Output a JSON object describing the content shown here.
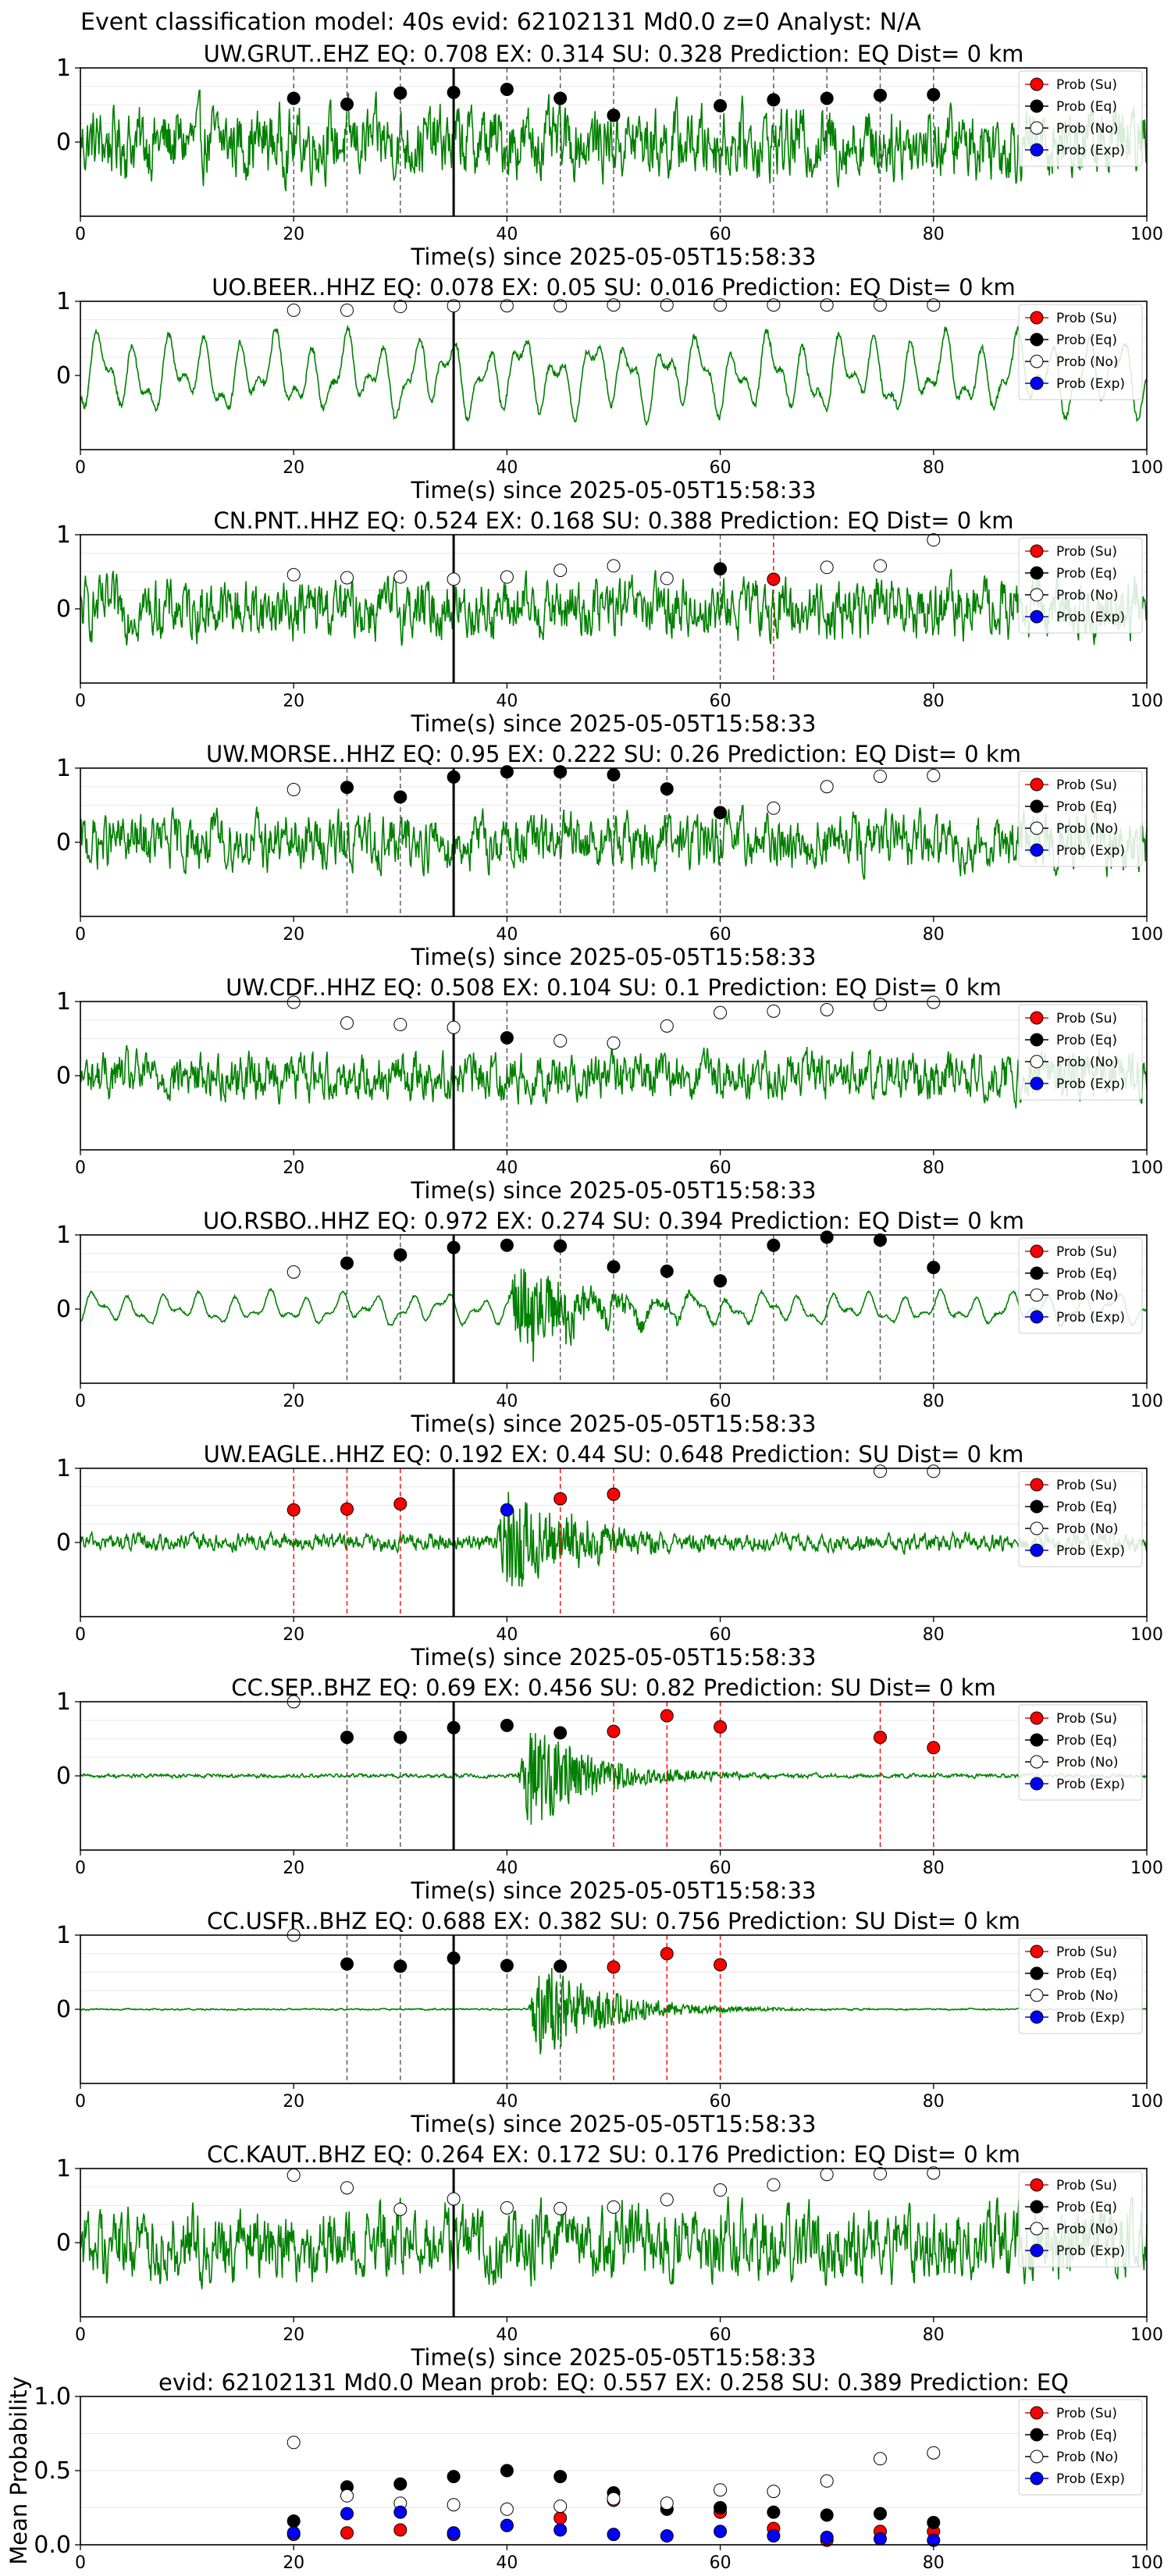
{
  "figure": {
    "suptitle": "Event classification model: 40s evid: 62102131 Md0.0 z=0 Analyst: N/A",
    "xlabel": "Time(s) since 2025-05-05T15:58:33",
    "legend": [
      "Prob (Su)",
      "Prob (Eq)",
      "Prob (No)",
      "Prob (Exp)"
    ],
    "colors": {
      "su": "#ff0000",
      "eq": "#000000",
      "no": "#ffffff",
      "exp": "#0000ff",
      "trace": "#008000",
      "su_line": "#ff0000",
      "eq_line": "#555555"
    }
  },
  "chart_data": [
    {
      "type": "line",
      "station": "UW.GRUT..EHZ",
      "title": "UW.GRUT..EHZ   EQ: 0.708  EX: 0.314  SU: 0.328   Prediction: EQ    Dist= 0 km",
      "xlim": [
        0,
        100
      ],
      "ylim": [
        -1,
        1
      ],
      "xticks": [
        0,
        20,
        40,
        60,
        80,
        100
      ],
      "yticks": [
        0,
        1
      ],
      "noise": 0.9,
      "signal": 0,
      "smooth": false,
      "event_line": 35,
      "eq_lines": [
        20,
        25,
        30,
        40,
        45,
        50,
        60,
        65,
        70,
        75,
        80
      ],
      "su_lines": [],
      "points": [
        {
          "x": 20,
          "y": 0.59,
          "cls": "eq"
        },
        {
          "x": 25,
          "y": 0.51,
          "cls": "eq"
        },
        {
          "x": 30,
          "y": 0.66,
          "cls": "eq"
        },
        {
          "x": 35,
          "y": 0.67,
          "cls": "eq"
        },
        {
          "x": 40,
          "y": 0.71,
          "cls": "eq"
        },
        {
          "x": 45,
          "y": 0.59,
          "cls": "eq"
        },
        {
          "x": 50,
          "y": 0.36,
          "cls": "eq"
        },
        {
          "x": 60,
          "y": 0.49,
          "cls": "eq"
        },
        {
          "x": 65,
          "y": 0.57,
          "cls": "eq"
        },
        {
          "x": 70,
          "y": 0.59,
          "cls": "eq"
        },
        {
          "x": 75,
          "y": 0.63,
          "cls": "eq"
        },
        {
          "x": 80,
          "y": 0.64,
          "cls": "eq"
        }
      ]
    },
    {
      "type": "line",
      "station": "UO.BEER..HHZ",
      "title": "UO.BEER..HHZ   EQ: 0.078  EX: 0.05  SU: 0.016   Prediction: EQ    Dist= 0 km",
      "xlim": [
        0,
        100
      ],
      "ylim": [
        -1,
        1
      ],
      "xticks": [
        0,
        20,
        40,
        60,
        80,
        100
      ],
      "yticks": [
        0,
        1
      ],
      "noise": 0.55,
      "signal": 0,
      "smooth": true,
      "event_line": 35,
      "eq_lines": [],
      "su_lines": [],
      "points": [
        {
          "x": 20,
          "y": 0.88,
          "cls": "no"
        },
        {
          "x": 25,
          "y": 0.88,
          "cls": "no"
        },
        {
          "x": 30,
          "y": 0.93,
          "cls": "no"
        },
        {
          "x": 35,
          "y": 0.94,
          "cls": "no"
        },
        {
          "x": 40,
          "y": 0.94,
          "cls": "no"
        },
        {
          "x": 45,
          "y": 0.94,
          "cls": "no"
        },
        {
          "x": 50,
          "y": 0.95,
          "cls": "no"
        },
        {
          "x": 55,
          "y": 0.95,
          "cls": "no"
        },
        {
          "x": 60,
          "y": 0.95,
          "cls": "no"
        },
        {
          "x": 65,
          "y": 0.95,
          "cls": "no"
        },
        {
          "x": 70,
          "y": 0.95,
          "cls": "no"
        },
        {
          "x": 75,
          "y": 0.95,
          "cls": "no"
        },
        {
          "x": 80,
          "y": 0.95,
          "cls": "no"
        }
      ]
    },
    {
      "type": "line",
      "station": "CN.PNT..HHZ",
      "title": "CN.PNT..HHZ   EQ: 0.524  EX: 0.168  SU: 0.388   Prediction: EQ    Dist= 0 km",
      "xlim": [
        0,
        100
      ],
      "ylim": [
        -1,
        1
      ],
      "xticks": [
        0,
        20,
        40,
        60,
        80,
        100
      ],
      "yticks": [
        0,
        1
      ],
      "noise": 0.75,
      "signal": 0,
      "smooth": false,
      "event_line": 35,
      "eq_lines": [
        60
      ],
      "su_lines": [
        65
      ],
      "points": [
        {
          "x": 20,
          "y": 0.46,
          "cls": "no"
        },
        {
          "x": 25,
          "y": 0.42,
          "cls": "no"
        },
        {
          "x": 30,
          "y": 0.43,
          "cls": "no"
        },
        {
          "x": 35,
          "y": 0.4,
          "cls": "no"
        },
        {
          "x": 40,
          "y": 0.43,
          "cls": "no"
        },
        {
          "x": 45,
          "y": 0.52,
          "cls": "no"
        },
        {
          "x": 50,
          "y": 0.58,
          "cls": "no"
        },
        {
          "x": 55,
          "y": 0.41,
          "cls": "no"
        },
        {
          "x": 60,
          "y": 0.54,
          "cls": "eq"
        },
        {
          "x": 65,
          "y": 0.4,
          "cls": "su"
        },
        {
          "x": 70,
          "y": 0.56,
          "cls": "no"
        },
        {
          "x": 75,
          "y": 0.58,
          "cls": "no"
        },
        {
          "x": 80,
          "y": 0.93,
          "cls": "no"
        }
      ]
    },
    {
      "type": "line",
      "station": "UW.MORSE..HHZ",
      "title": "UW.MORSE..HHZ   EQ: 0.95  EX: 0.222  SU: 0.26   Prediction: EQ    Dist= 0 km",
      "xlim": [
        0,
        100
      ],
      "ylim": [
        -1,
        1
      ],
      "xticks": [
        0,
        20,
        40,
        60,
        80,
        100
      ],
      "yticks": [
        0,
        1
      ],
      "noise": 0.7,
      "signal": 0,
      "smooth": false,
      "event_line": 35,
      "eq_lines": [
        25,
        30,
        40,
        45,
        50,
        55,
        60
      ],
      "su_lines": [],
      "points": [
        {
          "x": 20,
          "y": 0.71,
          "cls": "no"
        },
        {
          "x": 25,
          "y": 0.74,
          "cls": "eq"
        },
        {
          "x": 30,
          "y": 0.61,
          "cls": "eq"
        },
        {
          "x": 35,
          "y": 0.88,
          "cls": "eq"
        },
        {
          "x": 40,
          "y": 0.95,
          "cls": "eq"
        },
        {
          "x": 45,
          "y": 0.95,
          "cls": "eq"
        },
        {
          "x": 50,
          "y": 0.91,
          "cls": "eq"
        },
        {
          "x": 55,
          "y": 0.72,
          "cls": "eq"
        },
        {
          "x": 60,
          "y": 0.4,
          "cls": "eq"
        },
        {
          "x": 65,
          "y": 0.46,
          "cls": "no"
        },
        {
          "x": 70,
          "y": 0.75,
          "cls": "no"
        },
        {
          "x": 75,
          "y": 0.89,
          "cls": "no"
        },
        {
          "x": 80,
          "y": 0.9,
          "cls": "no"
        }
      ]
    },
    {
      "type": "line",
      "station": "UW.CDF..HHZ",
      "title": "UW.CDF..HHZ   EQ: 0.508  EX: 0.104  SU: 0.1   Prediction: EQ    Dist= 0 km",
      "xlim": [
        0,
        100
      ],
      "ylim": [
        -1,
        1
      ],
      "xticks": [
        0,
        20,
        40,
        60,
        80,
        100
      ],
      "yticks": [
        0,
        1
      ],
      "noise": 0.6,
      "signal": 0,
      "smooth": false,
      "event_line": 35,
      "eq_lines": [
        40
      ],
      "su_lines": [],
      "points": [
        {
          "x": 20,
          "y": 0.99,
          "cls": "no"
        },
        {
          "x": 25,
          "y": 0.71,
          "cls": "no"
        },
        {
          "x": 30,
          "y": 0.69,
          "cls": "no"
        },
        {
          "x": 35,
          "y": 0.65,
          "cls": "no"
        },
        {
          "x": 40,
          "y": 0.51,
          "cls": "eq"
        },
        {
          "x": 45,
          "y": 0.47,
          "cls": "no"
        },
        {
          "x": 50,
          "y": 0.44,
          "cls": "no"
        },
        {
          "x": 55,
          "y": 0.67,
          "cls": "no"
        },
        {
          "x": 60,
          "y": 0.85,
          "cls": "no"
        },
        {
          "x": 65,
          "y": 0.87,
          "cls": "no"
        },
        {
          "x": 70,
          "y": 0.89,
          "cls": "no"
        },
        {
          "x": 75,
          "y": 0.96,
          "cls": "no"
        },
        {
          "x": 80,
          "y": 0.99,
          "cls": "no"
        }
      ]
    },
    {
      "type": "line",
      "station": "UO.RSBO..HHZ",
      "title": "UO.RSBO..HHZ   EQ: 0.972  EX: 0.274  SU: 0.394   Prediction: EQ    Dist= 0 km",
      "xlim": [
        0,
        100
      ],
      "ylim": [
        -1,
        1
      ],
      "xticks": [
        0,
        20,
        40,
        60,
        80,
        100
      ],
      "yticks": [
        0,
        1
      ],
      "noise": 0.22,
      "signal": 0.8,
      "signal_start": 40,
      "smooth": true,
      "event_line": 35,
      "eq_lines": [
        25,
        30,
        45,
        50,
        55,
        60,
        65,
        70,
        75,
        80
      ],
      "su_lines": [],
      "points": [
        {
          "x": 20,
          "y": 0.5,
          "cls": "no"
        },
        {
          "x": 25,
          "y": 0.62,
          "cls": "eq"
        },
        {
          "x": 30,
          "y": 0.73,
          "cls": "eq"
        },
        {
          "x": 35,
          "y": 0.83,
          "cls": "eq"
        },
        {
          "x": 40,
          "y": 0.86,
          "cls": "eq"
        },
        {
          "x": 45,
          "y": 0.85,
          "cls": "eq"
        },
        {
          "x": 50,
          "y": 0.57,
          "cls": "eq"
        },
        {
          "x": 55,
          "y": 0.51,
          "cls": "eq"
        },
        {
          "x": 60,
          "y": 0.38,
          "cls": "eq"
        },
        {
          "x": 65,
          "y": 0.86,
          "cls": "eq"
        },
        {
          "x": 70,
          "y": 0.97,
          "cls": "eq"
        },
        {
          "x": 75,
          "y": 0.93,
          "cls": "eq"
        },
        {
          "x": 80,
          "y": 0.56,
          "cls": "eq"
        }
      ]
    },
    {
      "type": "line",
      "station": "UW.EAGLE..HHZ",
      "title": "UW.EAGLE..HHZ   EQ: 0.192  EX: 0.44  SU: 0.648   Prediction: SU    Dist= 0 km",
      "xlim": [
        0,
        100
      ],
      "ylim": [
        -1,
        1
      ],
      "xticks": [
        0,
        20,
        40,
        60,
        80,
        100
      ],
      "yticks": [
        0,
        1
      ],
      "noise": 0.22,
      "signal": 0.85,
      "signal_start": 39,
      "smooth": false,
      "event_line": 35,
      "eq_lines": [],
      "su_lines": [
        20,
        25,
        30,
        45,
        50
      ],
      "points": [
        {
          "x": 20,
          "y": 0.44,
          "cls": "su"
        },
        {
          "x": 25,
          "y": 0.45,
          "cls": "su"
        },
        {
          "x": 30,
          "y": 0.52,
          "cls": "su"
        },
        {
          "x": 40,
          "y": 0.44,
          "cls": "exp"
        },
        {
          "x": 45,
          "y": 0.59,
          "cls": "su"
        },
        {
          "x": 50,
          "y": 0.65,
          "cls": "su"
        },
        {
          "x": 75,
          "y": 0.96,
          "cls": "no"
        },
        {
          "x": 80,
          "y": 0.96,
          "cls": "no"
        }
      ]
    },
    {
      "type": "line",
      "station": "CC.SEP..BHZ",
      "title": "CC.SEP..BHZ   EQ: 0.69  EX: 0.456  SU: 0.82   Prediction: SU    Dist= 0 km",
      "xlim": [
        0,
        100
      ],
      "ylim": [
        -1,
        1
      ],
      "xticks": [
        0,
        20,
        40,
        60,
        80,
        100
      ],
      "yticks": [
        0,
        1
      ],
      "noise": 0.05,
      "signal": 0.9,
      "signal_start": 41,
      "smooth": false,
      "event_line": 35,
      "eq_lines": [
        25,
        30
      ],
      "su_lines": [
        50,
        55,
        60,
        75,
        80
      ],
      "points": [
        {
          "x": 20,
          "y": 1.0,
          "cls": "no"
        },
        {
          "x": 25,
          "y": 0.52,
          "cls": "eq"
        },
        {
          "x": 30,
          "y": 0.52,
          "cls": "eq"
        },
        {
          "x": 35,
          "y": 0.65,
          "cls": "eq"
        },
        {
          "x": 40,
          "y": 0.68,
          "cls": "eq"
        },
        {
          "x": 45,
          "y": 0.58,
          "cls": "eq"
        },
        {
          "x": 50,
          "y": 0.6,
          "cls": "su"
        },
        {
          "x": 55,
          "y": 0.81,
          "cls": "su"
        },
        {
          "x": 60,
          "y": 0.66,
          "cls": "su"
        },
        {
          "x": 75,
          "y": 0.52,
          "cls": "su"
        },
        {
          "x": 80,
          "y": 0.38,
          "cls": "su"
        }
      ]
    },
    {
      "type": "line",
      "station": "CC.USFR..BHZ",
      "title": "CC.USFR..BHZ   EQ: 0.688  EX: 0.382  SU: 0.756   Prediction: SU    Dist= 0 km",
      "xlim": [
        0,
        100
      ],
      "ylim": [
        -1,
        1
      ],
      "xticks": [
        0,
        20,
        40,
        60,
        80,
        100
      ],
      "yticks": [
        0,
        1
      ],
      "noise": 0.02,
      "signal": 0.85,
      "signal_start": 42,
      "smooth": false,
      "event_line": 35,
      "eq_lines": [
        25,
        30,
        40,
        45
      ],
      "su_lines": [
        50,
        55,
        60
      ],
      "points": [
        {
          "x": 20,
          "y": 1.0,
          "cls": "no"
        },
        {
          "x": 25,
          "y": 0.61,
          "cls": "eq"
        },
        {
          "x": 30,
          "y": 0.58,
          "cls": "eq"
        },
        {
          "x": 35,
          "y": 0.69,
          "cls": "eq"
        },
        {
          "x": 40,
          "y": 0.59,
          "cls": "eq"
        },
        {
          "x": 45,
          "y": 0.58,
          "cls": "eq"
        },
        {
          "x": 50,
          "y": 0.57,
          "cls": "su"
        },
        {
          "x": 55,
          "y": 0.75,
          "cls": "su"
        },
        {
          "x": 60,
          "y": 0.6,
          "cls": "su"
        }
      ]
    },
    {
      "type": "line",
      "station": "CC.KAUT..BHZ",
      "title": "CC.KAUT..BHZ   EQ: 0.264  EX: 0.172  SU: 0.176   Prediction: EQ    Dist= 0 km",
      "xlim": [
        0,
        100
      ],
      "ylim": [
        -1,
        1
      ],
      "xticks": [
        0,
        20,
        40,
        60,
        80,
        100
      ],
      "yticks": [
        0,
        1
      ],
      "noise": 0.95,
      "signal": 0,
      "smooth": false,
      "event_line": 35,
      "eq_lines": [],
      "su_lines": [],
      "points": [
        {
          "x": 20,
          "y": 0.91,
          "cls": "no"
        },
        {
          "x": 25,
          "y": 0.74,
          "cls": "no"
        },
        {
          "x": 30,
          "y": 0.45,
          "cls": "no"
        },
        {
          "x": 35,
          "y": 0.59,
          "cls": "no"
        },
        {
          "x": 40,
          "y": 0.47,
          "cls": "no"
        },
        {
          "x": 45,
          "y": 0.46,
          "cls": "no"
        },
        {
          "x": 50,
          "y": 0.48,
          "cls": "no"
        },
        {
          "x": 55,
          "y": 0.58,
          "cls": "no"
        },
        {
          "x": 60,
          "y": 0.71,
          "cls": "no"
        },
        {
          "x": 65,
          "y": 0.78,
          "cls": "no"
        },
        {
          "x": 70,
          "y": 0.92,
          "cls": "no"
        },
        {
          "x": 75,
          "y": 0.93,
          "cls": "no"
        },
        {
          "x": 80,
          "y": 0.94,
          "cls": "no"
        }
      ]
    },
    {
      "type": "scatter",
      "station": "mean",
      "title": "evid: 62102131   Md0.0   Mean prob:   EQ: 0.557  EX: 0.258  SU: 0.389   Prediction: EQ",
      "ylabel": "Mean Probability",
      "xlim": [
        0,
        100
      ],
      "ylim": [
        0,
        1
      ],
      "xticks": [
        0,
        20,
        40,
        60,
        80,
        100
      ],
      "yticks": [
        0.0,
        0.5,
        1.0
      ],
      "x": [
        20,
        25,
        30,
        35,
        40,
        45,
        50,
        55,
        60,
        65,
        70,
        75,
        80
      ],
      "series": [
        {
          "name": "Prob (Su)",
          "cls": "su",
          "values": [
            0.07,
            0.08,
            0.1,
            0.07,
            0.13,
            0.18,
            0.3,
            0.24,
            0.22,
            0.11,
            0.03,
            0.09,
            0.09
          ]
        },
        {
          "name": "Prob (Eq)",
          "cls": "eq",
          "values": [
            0.16,
            0.39,
            0.41,
            0.46,
            0.5,
            0.46,
            0.35,
            0.24,
            0.25,
            0.22,
            0.2,
            0.21,
            0.15
          ]
        },
        {
          "name": "Prob (No)",
          "cls": "no",
          "values": [
            0.69,
            0.33,
            0.28,
            0.27,
            0.24,
            0.26,
            0.31,
            0.28,
            0.37,
            0.36,
            0.43,
            0.58,
            0.62
          ]
        },
        {
          "name": "Prob (Exp)",
          "cls": "exp",
          "values": [
            0.08,
            0.21,
            0.22,
            0.08,
            0.13,
            0.1,
            0.07,
            0.06,
            0.09,
            0.06,
            0.05,
            0.04,
            0.03
          ]
        }
      ]
    }
  ]
}
